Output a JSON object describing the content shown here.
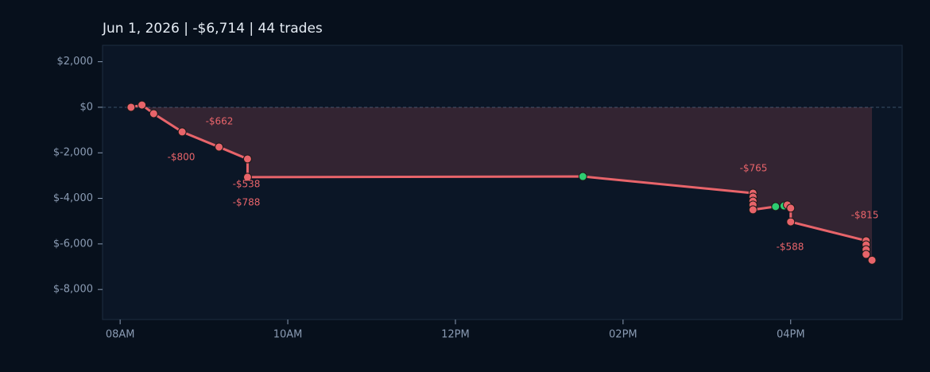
{
  "chart_data": {
    "type": "line",
    "title": "Jun 1, 2026  |  -$6,714  |  44 trades",
    "x": [
      8.13,
      8.26,
      8.4,
      8.74,
      9.18,
      9.52,
      9.52,
      13.52,
      15.55,
      15.55,
      15.55,
      15.55,
      15.55,
      15.82,
      15.92,
      15.96,
      16.0,
      16.0,
      16.9,
      16.9,
      16.9,
      16.9,
      16.97
    ],
    "series": [
      {
        "color": "#e8646a",
        "values": [
          0,
          100,
          -280,
          -1080,
          -1745,
          -2270,
          -3070,
          -3040,
          -3770,
          -3940,
          -4120,
          -4290,
          -4500,
          -4360,
          -4330,
          -4290,
          -4430,
          -5030,
          -5860,
          -6040,
          -6250,
          -6460,
          -6714
        ],
        "point_colors": [
          "#e8646a",
          "#e8646a",
          "#e8646a",
          "#e8646a",
          "#e8646a",
          "#e8646a",
          "#e8646a",
          "#2ecc71",
          "#e8646a",
          "#e8646a",
          "#e8646a",
          "#e8646a",
          "#e8646a",
          "#2ecc71",
          "#2ecc71",
          "#e8646a",
          "#e8646a",
          "#e8646a",
          "#e8646a",
          "#e8646a",
          "#e8646a",
          "#e8646a",
          "#e8646a"
        ]
      }
    ],
    "xlim": [
      7.79,
      17.33
    ],
    "xticks": [
      {
        "value": 8,
        "label": "08AM"
      },
      {
        "value": 10,
        "label": "10AM"
      },
      {
        "value": 12,
        "label": "12PM"
      },
      {
        "value": 14,
        "label": "02PM"
      },
      {
        "value": 16,
        "label": "04PM"
      }
    ],
    "ylim": [
      -9320,
      2720
    ],
    "yticks": [
      {
        "value": 2000,
        "label": "$2,000"
      },
      {
        "value": 0,
        "label": "$0"
      },
      {
        "value": -2000,
        "label": "$-2,000"
      },
      {
        "value": -4000,
        "label": "$-4,000"
      },
      {
        "value": -6000,
        "label": "$-6,000"
      },
      {
        "value": -8000,
        "label": "$-8,000"
      }
    ],
    "annotations": [
      "-$662",
      "-$800",
      "-$538",
      "-$788",
      "-$765",
      "-$815",
      "-$588"
    ]
  }
}
